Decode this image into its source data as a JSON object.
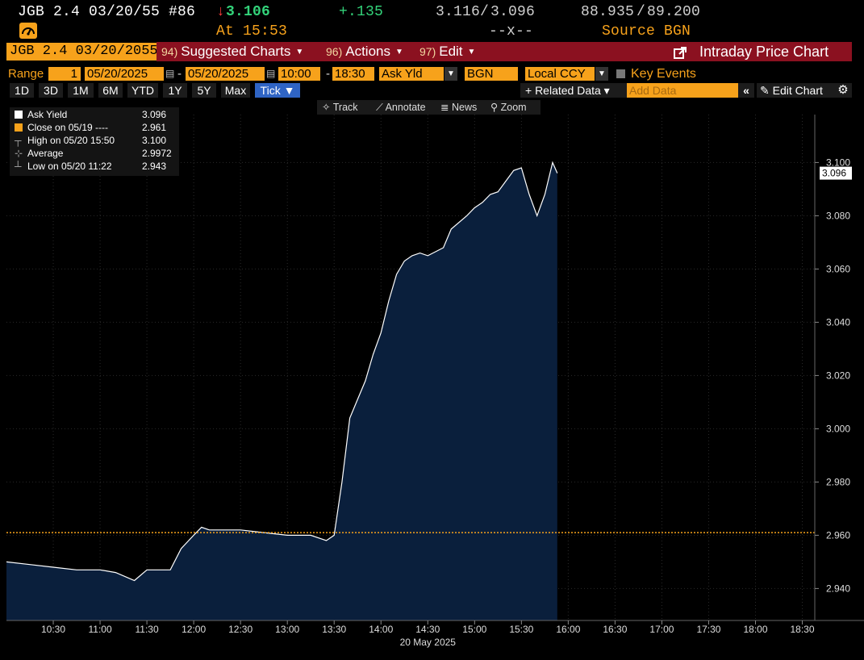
{
  "security": {
    "name": "JGB 2.4 03/20/55 #86",
    "last": "3.106",
    "change": "+.135",
    "bid": "3.116",
    "ask": "3.096",
    "price_bid": "88.935",
    "price_ask": "89.200",
    "time_label": "At 15:53",
    "size_placeholder": "--x--",
    "source_label": "Source BGN"
  },
  "toolbar": {
    "ticker_value": "JGB 2.4 03/20/2055",
    "suggested": {
      "num": "94)",
      "label": "Suggested Charts"
    },
    "actions": {
      "num": "96)",
      "label": "Actions"
    },
    "edit": {
      "num": "97)",
      "label": "Edit"
    },
    "title": "Intraday Price Chart"
  },
  "range": {
    "label": "Range",
    "count": "1",
    "start_date": "05/20/2025",
    "end_date": "05/20/2025",
    "start_time": "10:00",
    "end_time": "18:30",
    "field": "Ask Yld",
    "source": "BGN",
    "currency": "Local CCY",
    "key_events": "Key Events"
  },
  "periods": [
    "1D",
    "3D",
    "1M",
    "6M",
    "YTD",
    "1Y",
    "5Y",
    "Max"
  ],
  "tick_label": "Tick ▼",
  "related_data": "+ Related Data ▾",
  "add_data_placeholder": "Add Data",
  "edit_chart": "Edit Chart",
  "mini_toolbar": {
    "track": "Track",
    "annotate": "Annotate",
    "news": "News",
    "zoom": "Zoom"
  },
  "legend": {
    "items": [
      {
        "label": "Ask Yield",
        "value": "3.096"
      },
      {
        "label": "Close on 05/19 ----",
        "value": "2.961"
      },
      {
        "label": "High on 05/20 15:50",
        "value": "3.100"
      },
      {
        "label": "Average",
        "value": "2.9972"
      },
      {
        "label": "Low on 05/20 11:22",
        "value": "2.943"
      }
    ]
  },
  "colors": {
    "orange": "#f7a21b",
    "red_bar": "#8b1120",
    "area": "#0a1f3c",
    "line": "#ffffff",
    "close_line": "#f7a21b"
  },
  "chart_data": {
    "type": "area",
    "date_label": "20 May 2025",
    "x_ticks": [
      "10:30",
      "11:00",
      "11:30",
      "12:00",
      "12:30",
      "13:00",
      "13:30",
      "14:00",
      "14:30",
      "15:00",
      "15:30",
      "16:00",
      "16:30",
      "17:00",
      "17:30",
      "18:00",
      "18:30"
    ],
    "y_ticks": [
      "3.100",
      "3.080",
      "3.060",
      "3.040",
      "3.020",
      "3.000",
      "2.980",
      "2.960",
      "2.940"
    ],
    "ylim": [
      2.928,
      3.118
    ],
    "xlim": [
      "10:00",
      "18:38"
    ],
    "last_value_label": "3.096",
    "close_level": 2.961,
    "series": [
      {
        "name": "Ask Yield",
        "x": [
          "10:00",
          "10:15",
          "10:30",
          "10:45",
          "11:00",
          "11:10",
          "11:22",
          "11:30",
          "11:45",
          "11:52",
          "12:00",
          "12:05",
          "12:10",
          "12:20",
          "12:30",
          "12:45",
          "13:00",
          "13:15",
          "13:25",
          "13:30",
          "13:35",
          "13:40",
          "13:45",
          "13:50",
          "13:55",
          "14:00",
          "14:05",
          "14:10",
          "14:15",
          "14:20",
          "14:25",
          "14:30",
          "14:40",
          "14:45",
          "14:55",
          "15:00",
          "15:05",
          "15:10",
          "15:15",
          "15:20",
          "15:25",
          "15:30",
          "15:35",
          "15:40",
          "15:45",
          "15:50",
          "15:53"
        ],
        "y": [
          2.95,
          2.949,
          2.948,
          2.947,
          2.947,
          2.946,
          2.943,
          2.947,
          2.947,
          2.955,
          2.96,
          2.963,
          2.962,
          2.962,
          2.962,
          2.961,
          2.96,
          2.96,
          2.958,
          2.96,
          2.98,
          3.004,
          3.011,
          3.018,
          3.028,
          3.036,
          3.048,
          3.058,
          3.063,
          3.065,
          3.066,
          3.065,
          3.068,
          3.075,
          3.08,
          3.083,
          3.085,
          3.088,
          3.089,
          3.093,
          3.097,
          3.098,
          3.088,
          3.08,
          3.088,
          3.1,
          3.096
        ]
      }
    ]
  }
}
